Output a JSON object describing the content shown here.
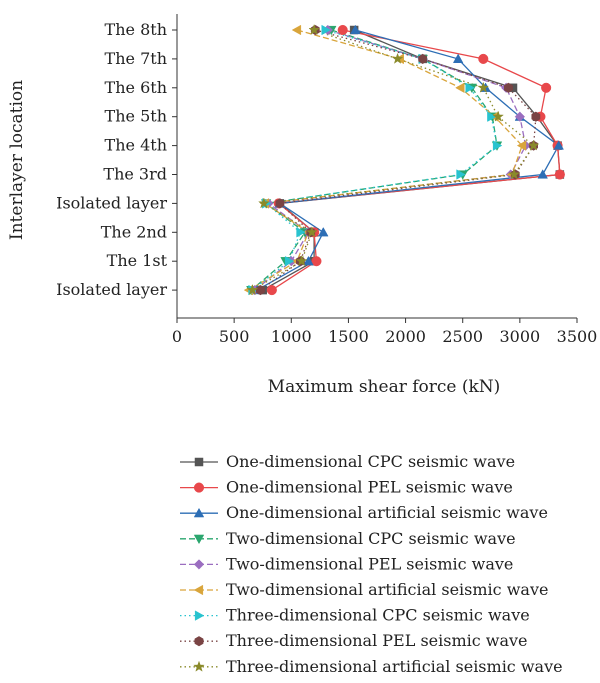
{
  "chart_data": {
    "type": "line",
    "orientation": "horizontal",
    "xlabel": "Maximum shear force (kN)",
    "ylabel": "Interlayer location",
    "xlim": [
      0,
      3500
    ],
    "xticks": [
      0,
      500,
      1000,
      1500,
      2000,
      2500,
      3000,
      3500
    ],
    "categories": [
      "The 8th",
      "The 7th",
      "The 6th",
      "The 5th",
      "The 4th",
      "The 3rd",
      "Isolated layer",
      "The 2nd",
      "The 1st",
      "Isolated layer"
    ],
    "legend_position": "bottom",
    "grid": false,
    "series": [
      {
        "name": "One-dimensional CPC seismic wave",
        "color": "#555555",
        "marker": "square",
        "dash": "solid",
        "values": [
          1550,
          2150,
          2940,
          3150,
          3330,
          3350,
          900,
          1200,
          1200,
          750
        ]
      },
      {
        "name": "One-dimensional PEL seismic wave",
        "color": "#e8484b",
        "marker": "circle",
        "dash": "solid",
        "values": [
          1450,
          2680,
          3230,
          3180,
          3330,
          3350,
          890,
          1200,
          1220,
          830
        ]
      },
      {
        "name": "One-dimensional artificial seismic wave",
        "color": "#2d6eb5",
        "marker": "triangle-up",
        "dash": "solid",
        "values": [
          1560,
          2460,
          2700,
          3000,
          3340,
          3200,
          900,
          1280,
          1150,
          700
        ]
      },
      {
        "name": "Two-dimensional CPC seismic wave",
        "color": "#2aa66e",
        "marker": "triangle-down",
        "dash": "dashed",
        "values": [
          1350,
          2150,
          2580,
          2760,
          2800,
          2500,
          780,
          1120,
          950,
          650
        ]
      },
      {
        "name": "Two-dimensional PEL seismic wave",
        "color": "#9b6ec0",
        "marker": "diamond",
        "dash": "dashed",
        "values": [
          1320,
          2150,
          2880,
          3000,
          3050,
          2920,
          800,
          1150,
          1000,
          680
        ]
      },
      {
        "name": "Two-dimensional artificial seismic wave",
        "color": "#d9a53b",
        "marker": "triangle-left",
        "dash": "dashed",
        "values": [
          1050,
          1950,
          2480,
          2780,
          3020,
          2930,
          770,
          1150,
          1050,
          630
        ]
      },
      {
        "name": "Three-dimensional CPC seismic wave",
        "color": "#28c3cf",
        "marker": "triangle-right",
        "dash": "dotted",
        "values": [
          1300,
          2150,
          2560,
          2750,
          2800,
          2480,
          780,
          1080,
          980,
          660
        ]
      },
      {
        "name": "Three-dimensional PEL seismic wave",
        "color": "#7a4444",
        "marker": "hexagon",
        "dash": "dotted",
        "values": [
          1210,
          2150,
          2900,
          3140,
          3120,
          2960,
          900,
          1170,
          1080,
          730
        ]
      },
      {
        "name": "Three-dimensional artificial seismic wave",
        "color": "#8a8a2a",
        "marker": "star",
        "dash": "dotted",
        "values": [
          1200,
          1930,
          2680,
          2810,
          3120,
          2950,
          760,
          1180,
          1090,
          660
        ]
      }
    ]
  }
}
